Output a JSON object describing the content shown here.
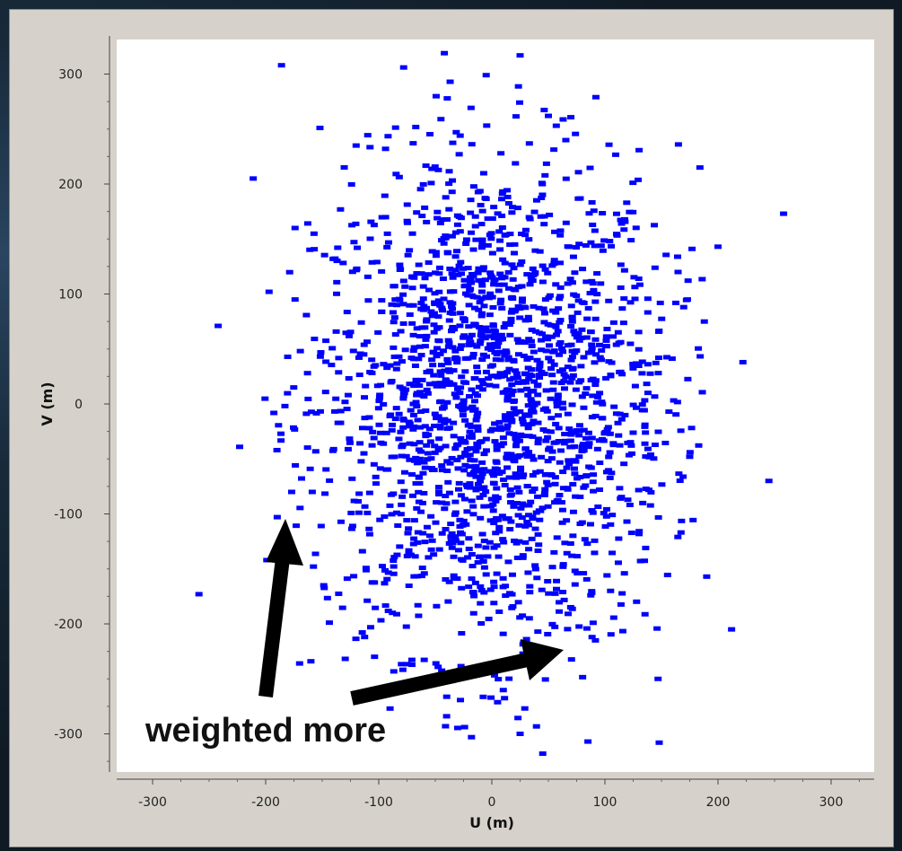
{
  "chart_data": {
    "type": "scatter",
    "title": "",
    "xlabel": "U (m)",
    "ylabel": "V (m)",
    "xlim": [
      -330,
      330
    ],
    "ylim": [
      -335,
      335
    ],
    "xticks": [
      -300,
      -200,
      -100,
      0,
      100,
      200,
      300
    ],
    "yticks": [
      300,
      200,
      100,
      0,
      -100,
      -200,
      -300
    ],
    "xtick_labels": [
      "-300",
      "-200",
      "-100",
      "0",
      "100",
      "200",
      "300"
    ],
    "ytick_labels": [
      "300",
      "200",
      "100",
      "0",
      "-100",
      "-200",
      "-300"
    ],
    "grid": false,
    "marker_color": "#0000ff",
    "annotation": "weighted more",
    "points_summary": "roughly 2000 uv samples filling an ellipse of ~±200 m in U and ~±300 m in V, with a small empty hole at the origin and a few outliers",
    "points": [
      [
        -186,
        308
      ],
      [
        -78,
        306
      ],
      [
        -42,
        319
      ],
      [
        -5,
        299
      ],
      [
        25,
        317
      ],
      [
        92,
        279
      ],
      [
        -152,
        251
      ],
      [
        -45,
        259
      ],
      [
        -120,
        235
      ],
      [
        -94,
        232
      ],
      [
        -28,
        244
      ],
      [
        57,
        253
      ],
      [
        165,
        236
      ],
      [
        -211,
        205
      ],
      [
        184,
        215
      ],
      [
        258,
        173
      ],
      [
        -174,
        160
      ],
      [
        -119,
        142
      ],
      [
        177,
        141
      ],
      [
        200,
        143
      ],
      [
        -197,
        102
      ],
      [
        -174,
        95
      ],
      [
        -242,
        71
      ],
      [
        173,
        95
      ],
      [
        -163,
        28
      ],
      [
        222,
        38
      ],
      [
        -223,
        -39
      ],
      [
        -190,
        -42
      ],
      [
        -177,
        -80
      ],
      [
        245,
        -70
      ],
      [
        -259,
        -173
      ],
      [
        -199,
        -142
      ],
      [
        -170,
        -236
      ],
      [
        -160,
        -234
      ],
      [
        -90,
        -277
      ],
      [
        -40,
        -284
      ],
      [
        -18,
        -303
      ],
      [
        25,
        -300
      ],
      [
        45,
        -318
      ],
      [
        85,
        -307
      ],
      [
        148,
        -308
      ],
      [
        212,
        -205
      ],
      [
        147,
        -250
      ],
      [
        190,
        -157
      ],
      [
        105,
        -170
      ]
    ]
  },
  "ui": {
    "accent_background": "#d6d2cb",
    "plot_background": "#ffffff"
  }
}
